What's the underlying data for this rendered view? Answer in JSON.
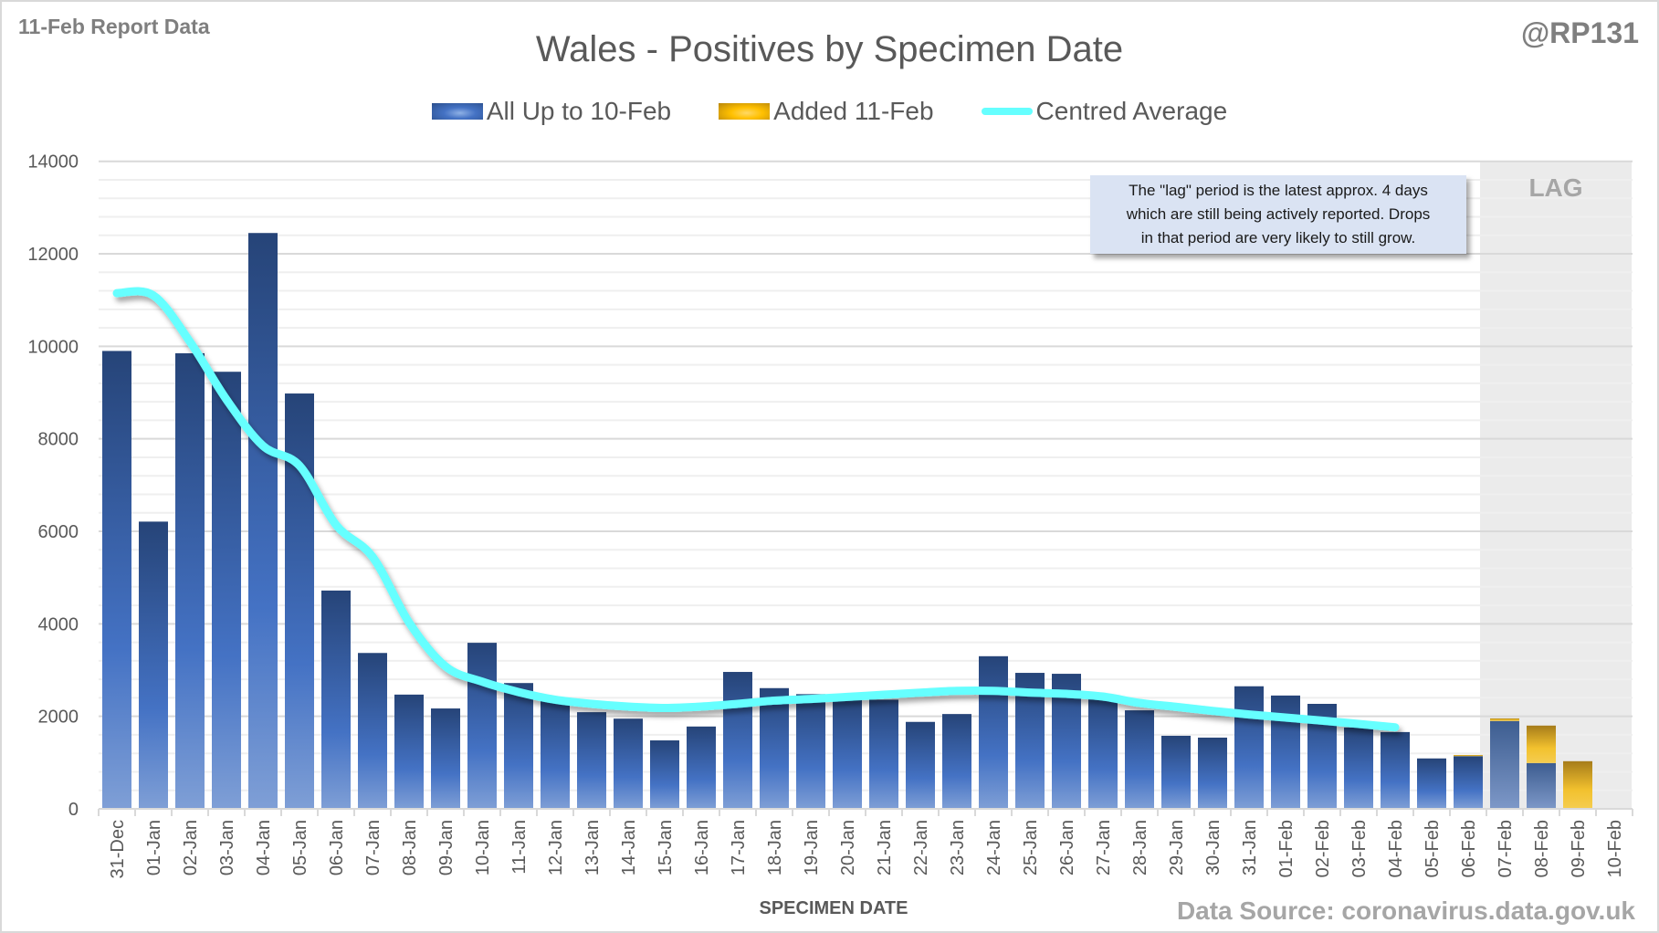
{
  "header": {
    "report_label": "11-Feb Report Data",
    "handle": "@RP131",
    "title": "Wales - Positives by Specimen Date"
  },
  "legend": [
    {
      "label": "All Up to 10-Feb",
      "icon": "blue-gradient-swatch"
    },
    {
      "label": "Added 11-Feb",
      "icon": "gold-gradient-swatch"
    },
    {
      "label": "Centred Average",
      "icon": "cyan-line-swatch"
    }
  ],
  "annotation": {
    "lines": [
      "The \"lag\" period is the latest approx. 4 days",
      "which are still being actively reported. Drops",
      "in that period are very likely to still grow."
    ]
  },
  "lag_label": "LAG",
  "footer": {
    "x_axis_title": "SPECIMEN DATE",
    "source": "Data Source: coronavirus.data.gov.uk"
  },
  "colors": {
    "series_base": "#4472c4",
    "series_added": "#ffc000",
    "average_line": "#66ffff",
    "lag_shade": "#ebebeb"
  },
  "chart_data": {
    "type": "bar",
    "title": "Wales - Positives by Specimen Date",
    "xlabel": "SPECIMEN DATE",
    "ylabel": "",
    "ylim": [
      0,
      14000
    ],
    "yticks": [
      0,
      2000,
      4000,
      6000,
      8000,
      10000,
      12000,
      14000
    ],
    "grid": true,
    "stacked": true,
    "legend_position": "top",
    "categories": [
      "31-Dec",
      "01-Jan",
      "02-Jan",
      "03-Jan",
      "04-Jan",
      "05-Jan",
      "06-Jan",
      "07-Jan",
      "08-Jan",
      "09-Jan",
      "10-Jan",
      "11-Jan",
      "12-Jan",
      "13-Jan",
      "14-Jan",
      "15-Jan",
      "16-Jan",
      "17-Jan",
      "18-Jan",
      "19-Jan",
      "20-Jan",
      "21-Jan",
      "22-Jan",
      "23-Jan",
      "24-Jan",
      "25-Jan",
      "26-Jan",
      "27-Jan",
      "28-Jan",
      "29-Jan",
      "30-Jan",
      "31-Jan",
      "01-Feb",
      "02-Feb",
      "03-Feb",
      "04-Feb",
      "05-Feb",
      "06-Feb",
      "07-Feb",
      "08-Feb",
      "09-Feb",
      "10-Feb"
    ],
    "series": [
      {
        "name": "All Up to 10-Feb",
        "type": "bar",
        "values": [
          9900,
          6210,
          9850,
          9450,
          12450,
          8980,
          4720,
          3370,
          2470,
          2170,
          3590,
          2720,
          2400,
          2090,
          1950,
          1480,
          1780,
          2960,
          2610,
          2480,
          2390,
          2360,
          1880,
          2050,
          3300,
          2940,
          2920,
          2460,
          2130,
          1580,
          1540,
          2650,
          2450,
          2270,
          1760,
          1660,
          1090,
          1140,
          1900,
          990,
          0,
          0
        ]
      },
      {
        "name": "Added 11-Feb",
        "type": "bar",
        "values": [
          0,
          0,
          0,
          0,
          0,
          0,
          0,
          0,
          0,
          0,
          0,
          0,
          0,
          0,
          0,
          0,
          0,
          0,
          0,
          0,
          0,
          0,
          0,
          0,
          0,
          0,
          0,
          0,
          0,
          0,
          0,
          0,
          0,
          0,
          0,
          0,
          0,
          25,
          55,
          810,
          1030,
          0
        ]
      },
      {
        "name": "Centred Average",
        "type": "line",
        "values": [
          11150,
          11100,
          10100,
          8850,
          7850,
          7420,
          6140,
          5450,
          4030,
          3080,
          2750,
          2525,
          2360,
          2270,
          2210,
          2180,
          2210,
          2270,
          2340,
          2375,
          2420,
          2467,
          2513,
          2552,
          2552,
          2513,
          2487,
          2428,
          2290,
          2205,
          2118,
          2040,
          1974,
          1908,
          1836,
          1763,
          null,
          null,
          null,
          null,
          null,
          null
        ]
      }
    ],
    "annotations": [
      {
        "text": "LAG",
        "range": [
          "07-Feb",
          "10-Feb"
        ]
      }
    ]
  }
}
